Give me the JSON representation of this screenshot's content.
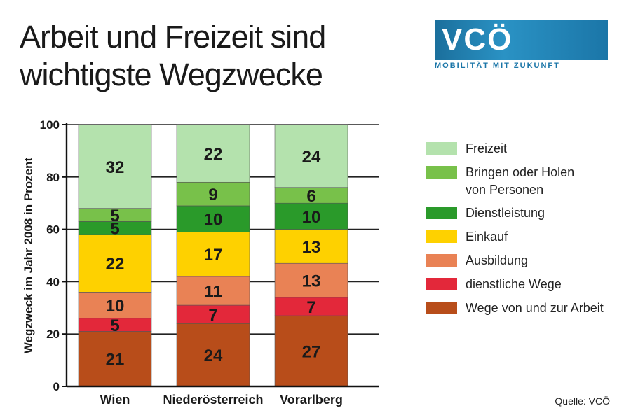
{
  "title_lines": [
    "Arbeit und Freizeit sind",
    "wichtigste Wegzwecke"
  ],
  "logo": {
    "text": "VCÖ",
    "tagline": "MOBILITÄT MIT ZUKUNFT"
  },
  "source": "Quelle: VCÖ",
  "chart_data": {
    "type": "bar",
    "stacked": true,
    "categories": [
      "Wien",
      "Niederösterreich",
      "Vorarlberg"
    ],
    "ylabel": "Wegzweck im Jahr 2008 in Prozent",
    "ylim": [
      0,
      100
    ],
    "yticks": [
      0,
      20,
      40,
      60,
      80,
      100
    ],
    "grid": true,
    "legend_position": "right",
    "series": [
      {
        "name": "Wege von und zur Arbeit",
        "color": "#b84d1a",
        "values": [
          21,
          24,
          27
        ]
      },
      {
        "name": "dienstliche Wege",
        "color": "#e3283a",
        "values": [
          5,
          7,
          7
        ]
      },
      {
        "name": "Ausbildung",
        "color": "#e98255",
        "values": [
          10,
          11,
          13
        ]
      },
      {
        "name": "Einkauf",
        "color": "#fed100",
        "values": [
          22,
          17,
          13
        ]
      },
      {
        "name": "Dienstleistung",
        "color": "#2a9a2a",
        "values": [
          5,
          10,
          10
        ]
      },
      {
        "name": "Bringen oder Holen von Personen",
        "name_lines": [
          "Bringen oder Holen",
          "von Personen"
        ],
        "color": "#78c14a",
        "values": [
          5,
          9,
          6
        ]
      },
      {
        "name": "Freizeit",
        "color": "#b4e2ad",
        "values": [
          32,
          22,
          24
        ]
      }
    ]
  }
}
